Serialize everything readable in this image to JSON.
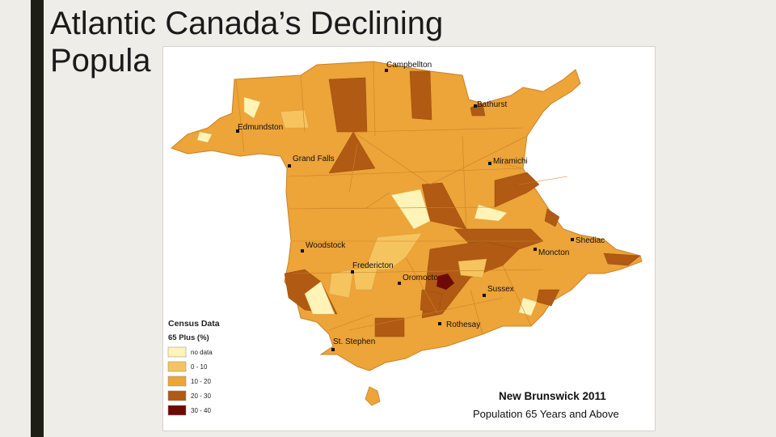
{
  "slide": {
    "title": "Atlantic Canada’s Declining Popula"
  },
  "map": {
    "title": "New Brunswick 2011",
    "subtitle": "Population 65 Years and Above",
    "cities": [
      {
        "name": "Campbellton"
      },
      {
        "name": "Bathurst"
      },
      {
        "name": "Edmundston"
      },
      {
        "name": "Grand Falls"
      },
      {
        "name": "Miramichi"
      },
      {
        "name": "Shediac"
      },
      {
        "name": "Woodstock"
      },
      {
        "name": "Moncton"
      },
      {
        "name": "Fredericton"
      },
      {
        "name": "Oromocto"
      },
      {
        "name": "Sussex"
      },
      {
        "name": "Rothesay"
      },
      {
        "name": "St. Stephen"
      }
    ],
    "legend": {
      "title": "Census Data",
      "subtitle": "65 Plus (%)",
      "classes": [
        {
          "label": "no data",
          "color": "#fff4b8"
        },
        {
          "label": "0 - 10",
          "color": "#f6c45e"
        },
        {
          "label": "10 - 20",
          "color": "#eda438"
        },
        {
          "label": "20 - 30",
          "color": "#b05a14"
        },
        {
          "label": "30 - 40",
          "color": "#6e0a06"
        }
      ]
    },
    "colors": {
      "land_main": "#eda438",
      "boundary": "#c9822a",
      "water": "#ffffff"
    }
  }
}
